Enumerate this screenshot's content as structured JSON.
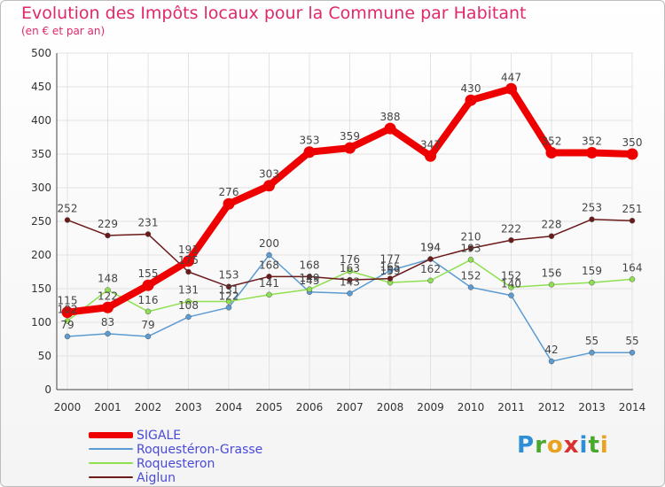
{
  "title": "Evolution des Impôts locaux pour la Commune par Habitant",
  "subtitle": "(en € et par an)",
  "logo": {
    "letters": [
      "P",
      "r",
      "o",
      "x",
      "i",
      "t",
      "i"
    ],
    "colors": [
      "#2e8fd6",
      "#4aa82e",
      "#e8a21f",
      "#d93030",
      "#2e8fd6",
      "#4aa82e",
      "#e8a21f"
    ]
  },
  "chart_data": {
    "type": "line",
    "title": "Evolution des Impôts locaux pour la Commune par Habitant",
    "subtitle": "(en € et par an)",
    "x": [
      "2000",
      "2001",
      "2002",
      "2003",
      "2004",
      "2005",
      "2006",
      "2007",
      "2008",
      "2009",
      "2010",
      "2011",
      "2012",
      "2013",
      "2014"
    ],
    "ylim": [
      0,
      500
    ],
    "yticks": [
      0,
      50,
      100,
      150,
      200,
      250,
      300,
      350,
      400,
      450,
      500
    ],
    "grid": true,
    "legend_position": "bottom-left",
    "series": [
      {
        "name": "SIGALE",
        "color": "#ee0000",
        "values": [
          115,
          122,
          155,
          191,
          276,
          303,
          353,
          359,
          388,
          347,
          430,
          447,
          352,
          352,
          350
        ]
      },
      {
        "name": "Roquestéron-Grasse",
        "color": "#5c9bd1",
        "values": [
          79,
          83,
          79,
          108,
          122,
          200,
          145,
          143,
          177,
          194,
          152,
          140,
          42,
          55,
          55
        ]
      },
      {
        "name": "Roquesteron",
        "color": "#8fe050",
        "values": [
          102,
          148,
          116,
          131,
          131,
          141,
          149,
          176,
          159,
          162,
          193,
          152,
          156,
          159,
          164
        ]
      },
      {
        "name": "Aiglun",
        "color": "#6b1a1a",
        "values": [
          252,
          229,
          231,
          175,
          153,
          168,
          168,
          163,
          165,
          194,
          210,
          222,
          228,
          253,
          251
        ]
      }
    ]
  }
}
